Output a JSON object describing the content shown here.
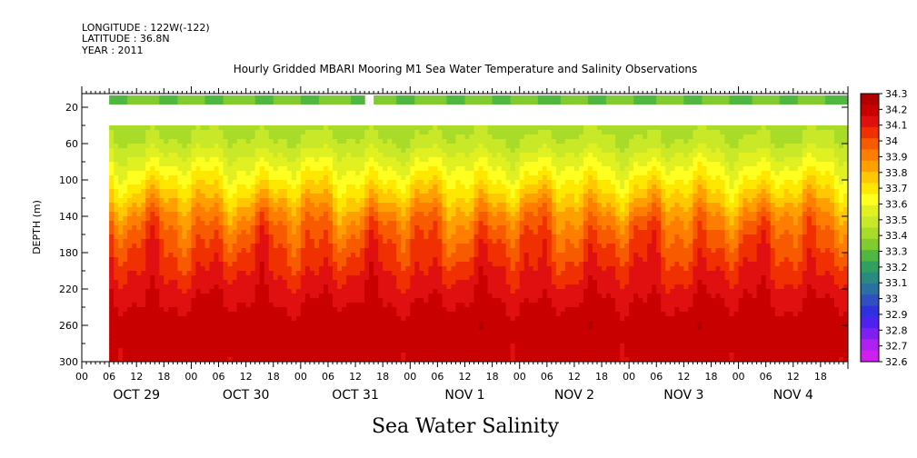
{
  "header": {
    "lines": [
      "LONGITUDE : 122W(-122)",
      "LATITUDE : 36.8N",
      "YEAR : 2011"
    ]
  },
  "chart_data": {
    "type": "heatmap",
    "title": "Hourly Gridded MBARI Mooring M1 Sea Water Temperature and Salinity Observations",
    "xlabel": "Sea Water Salinity",
    "ylabel": "DEPTH (m)",
    "ylim": [
      300,
      5
    ],
    "y_ticks": [
      20,
      60,
      100,
      140,
      180,
      220,
      260,
      300
    ],
    "x_range_hours": [
      0,
      168
    ],
    "x_hour_labels": [
      "00",
      "06",
      "12",
      "18",
      "00",
      "06",
      "12",
      "18",
      "00",
      "06",
      "12",
      "18",
      "00",
      "06",
      "12",
      "18",
      "00",
      "06",
      "12",
      "18",
      "00",
      "06",
      "12",
      "18",
      "00",
      "06",
      "12",
      "18"
    ],
    "x_day_labels": [
      "OCT 29",
      "OCT 30",
      "OCT 31",
      "NOV  1",
      "NOV  2",
      "NOV  3",
      "NOV  4"
    ],
    "data_start_hour": 6,
    "gap_hours": [
      62,
      64
    ],
    "surface_band_depth": [
      7,
      17
    ],
    "deep_band_start_depth": 40,
    "profile_depths": [
      40,
      60,
      80,
      100,
      120,
      140,
      160,
      180,
      200,
      220,
      240,
      260,
      280,
      300
    ],
    "profile_salinity": [
      33.42,
      33.47,
      33.57,
      33.67,
      33.78,
      33.9,
      33.98,
      34.03,
      34.08,
      34.13,
      34.17,
      34.2,
      34.19,
      34.18
    ],
    "surface_salinity": 33.32,
    "colorbar": {
      "levels": [
        "34.3",
        "34.2",
        "34.1",
        "34",
        "33.9",
        "33.8",
        "33.7",
        "33.6",
        "33.5",
        "33.4",
        "33.3",
        "33.2",
        "33.1",
        "33",
        "32.9",
        "32.8",
        "32.7",
        "32.6"
      ],
      "colors": [
        "#b00000",
        "#c80000",
        "#e01010",
        "#f03000",
        "#f85a00",
        "#ff7d00",
        "#ffa000",
        "#ffc800",
        "#ffe800",
        "#ffff20",
        "#e0f020",
        "#c8e828",
        "#a8dc28",
        "#80cc30",
        "#50b840",
        "#30a060",
        "#2a8a80",
        "#2a70a0",
        "#3050c0",
        "#3030e0",
        "#5020f0",
        "#8020f0",
        "#b020f0",
        "#d020f0"
      ]
    }
  }
}
